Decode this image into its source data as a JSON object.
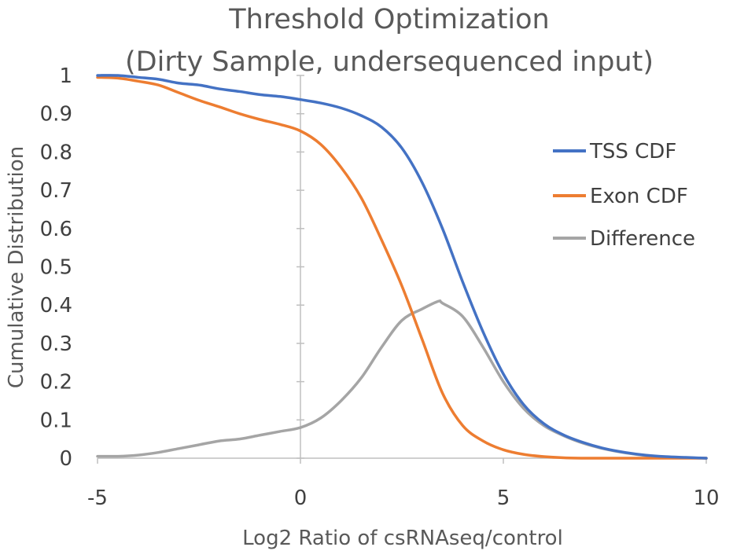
{
  "chart_data": {
    "type": "line",
    "title": "Threshold Optimization",
    "subtitle": "(Dirty Sample, undersequenced input)",
    "xlabel": "Log2 Ratio of csRNAseq/control",
    "ylabel": "Cumulative Distribution",
    "xlim": [
      -5,
      10
    ],
    "ylim": [
      0,
      1
    ],
    "xticks": [
      "-5",
      "0",
      "5",
      "10"
    ],
    "yticks": [
      "0",
      "0.1",
      "0.2",
      "0.3",
      "0.4",
      "0.5",
      "0.6",
      "0.7",
      "0.8",
      "0.9",
      "1"
    ],
    "grid": false,
    "legend_position": "right",
    "series": [
      {
        "name": "TSS CDF",
        "color": "#4472C4",
        "x": [
          -5,
          -4.5,
          -4,
          -3.5,
          -3,
          -2.5,
          -2,
          -1.5,
          -1,
          -0.5,
          0,
          0.5,
          1,
          1.5,
          2,
          2.5,
          3,
          3.5,
          4,
          4.5,
          5,
          5.5,
          6,
          6.5,
          7,
          7.5,
          8,
          8.5,
          9,
          9.5,
          10
        ],
        "values": [
          1.0,
          1.0,
          0.995,
          0.99,
          0.98,
          0.975,
          0.965,
          0.958,
          0.95,
          0.945,
          0.937,
          0.928,
          0.915,
          0.895,
          0.865,
          0.81,
          0.72,
          0.6,
          0.46,
          0.33,
          0.22,
          0.14,
          0.09,
          0.06,
          0.04,
          0.025,
          0.015,
          0.008,
          0.004,
          0.002,
          0.0
        ]
      },
      {
        "name": "Exon CDF",
        "color": "#ED7D31",
        "x": [
          -5,
          -4.5,
          -4,
          -3.5,
          -3,
          -2.5,
          -2,
          -1.5,
          -1,
          -0.5,
          0,
          0.5,
          1,
          1.5,
          2,
          2.5,
          3,
          3.5,
          4,
          4.5,
          5,
          5.5,
          6,
          6.5,
          7,
          7.5,
          8,
          8.5,
          9,
          9.5,
          10
        ],
        "values": [
          0.995,
          0.993,
          0.985,
          0.975,
          0.955,
          0.935,
          0.918,
          0.9,
          0.885,
          0.872,
          0.855,
          0.82,
          0.76,
          0.68,
          0.57,
          0.45,
          0.31,
          0.17,
          0.085,
          0.045,
          0.022,
          0.01,
          0.004,
          0.001,
          0.0,
          0.0,
          0.0,
          0.0,
          0.0,
          0.0,
          0.0
        ]
      },
      {
        "name": "Difference",
        "color": "#A5A5A5",
        "x": [
          -5,
          -4.5,
          -4,
          -3.5,
          -3,
          -2.5,
          -2,
          -1.5,
          -1,
          -0.5,
          0,
          0.5,
          1,
          1.5,
          2,
          2.5,
          3,
          3.4,
          3.5,
          4,
          4.5,
          5,
          5.5,
          6,
          6.5,
          7,
          7.5,
          8,
          8.5,
          9,
          9.5,
          10
        ],
        "values": [
          0.005,
          0.005,
          0.008,
          0.015,
          0.025,
          0.035,
          0.045,
          0.05,
          0.06,
          0.07,
          0.08,
          0.105,
          0.15,
          0.21,
          0.29,
          0.36,
          0.39,
          0.41,
          0.405,
          0.37,
          0.29,
          0.2,
          0.13,
          0.085,
          0.058,
          0.038,
          0.024,
          0.014,
          0.007,
          0.003,
          0.001,
          0.0
        ]
      }
    ]
  }
}
